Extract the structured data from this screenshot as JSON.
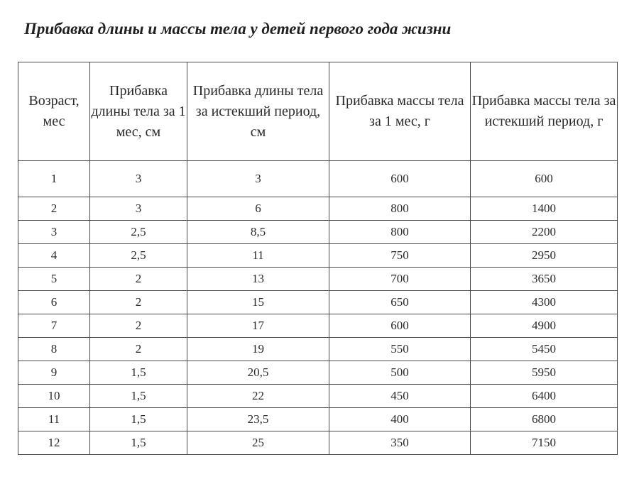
{
  "title": "Прибавка длины и массы тела у детей первого года жизни",
  "table": {
    "headers": [
      "Возраст, мес",
      "Прибавка длины тела за 1 мес, см",
      "Прибавка длины тела за истекший период, см",
      "Прибавка массы тела за 1 мес, г",
      "Прибавка массы тела за истекший период, г"
    ],
    "rows": [
      [
        "1",
        "3",
        "3",
        "600",
        "600"
      ],
      [
        "2",
        "3",
        "6",
        "800",
        "1400"
      ],
      [
        "3",
        "2,5",
        "8,5",
        "800",
        "2200"
      ],
      [
        "4",
        "2,5",
        "11",
        "750",
        "2950"
      ],
      [
        "5",
        "2",
        "13",
        "700",
        "3650"
      ],
      [
        "6",
        "2",
        "15",
        "650",
        "4300"
      ],
      [
        "7",
        "2",
        "17",
        "600",
        "4900"
      ],
      [
        "8",
        "2",
        "19",
        "550",
        "5450"
      ],
      [
        "9",
        "1,5",
        "20,5",
        "500",
        "5950"
      ],
      [
        "10",
        "1,5",
        "22",
        "450",
        "6400"
      ],
      [
        "11",
        "1,5",
        "23,5",
        "400",
        "6800"
      ],
      [
        "12",
        "1,5",
        "25",
        "350",
        "7150"
      ]
    ]
  }
}
